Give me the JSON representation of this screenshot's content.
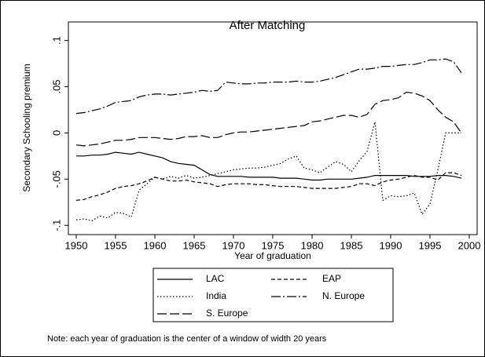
{
  "chart_data": {
    "type": "line",
    "title": "After Matching",
    "x_label": "Year of graduation",
    "y_label": "Secondary Schooling premium",
    "note": "Note: each year of graduation is the center of a window of width 20 years",
    "x": [
      1950,
      1951,
      1952,
      1953,
      1954,
      1955,
      1956,
      1957,
      1958,
      1959,
      1960,
      1961,
      1962,
      1963,
      1964,
      1965,
      1966,
      1967,
      1968,
      1969,
      1970,
      1971,
      1972,
      1973,
      1974,
      1975,
      1976,
      1977,
      1978,
      1979,
      1980,
      1981,
      1982,
      1983,
      1984,
      1985,
      1986,
      1987,
      1988,
      1989,
      1990,
      1991,
      1992,
      1993,
      1994,
      1995,
      1996,
      1997,
      1998,
      1999
    ],
    "series": [
      {
        "name": "LAC",
        "color": "#000000",
        "style": "solid",
        "values": [
          -0.025,
          -0.025,
          -0.024,
          -0.024,
          -0.023,
          -0.021,
          -0.022,
          -0.023,
          -0.021,
          -0.023,
          -0.025,
          -0.027,
          -0.031,
          -0.033,
          -0.034,
          -0.035,
          -0.04,
          -0.045,
          -0.047,
          -0.047,
          -0.047,
          -0.047,
          -0.048,
          -0.048,
          -0.048,
          -0.048,
          -0.049,
          -0.049,
          -0.049,
          -0.05,
          -0.051,
          -0.051,
          -0.05,
          -0.05,
          -0.05,
          -0.05,
          -0.049,
          -0.048,
          -0.046,
          -0.046,
          -0.046,
          -0.046,
          -0.046,
          -0.047,
          -0.047,
          -0.047,
          -0.046,
          -0.046,
          -0.047,
          -0.049
        ]
      },
      {
        "name": "EAP",
        "color": "#000000",
        "style": "dash",
        "values": [
          -0.073,
          -0.072,
          -0.069,
          -0.067,
          -0.064,
          -0.06,
          -0.058,
          -0.057,
          -0.055,
          -0.052,
          -0.048,
          -0.05,
          -0.052,
          -0.052,
          -0.051,
          -0.053,
          -0.054,
          -0.055,
          -0.058,
          -0.056,
          -0.055,
          -0.055,
          -0.055,
          -0.056,
          -0.056,
          -0.057,
          -0.058,
          -0.058,
          -0.058,
          -0.059,
          -0.06,
          -0.06,
          -0.06,
          -0.06,
          -0.059,
          -0.058,
          -0.055,
          -0.055,
          -0.057,
          -0.053,
          -0.051,
          -0.05,
          -0.048,
          -0.046,
          -0.048,
          -0.048,
          -0.051,
          -0.043,
          -0.043,
          -0.046
        ]
      },
      {
        "name": "India",
        "color": "#000000",
        "style": "dot",
        "values": [
          -0.094,
          -0.093,
          -0.095,
          -0.09,
          -0.092,
          -0.086,
          -0.087,
          -0.091,
          -0.062,
          -0.055,
          -0.048,
          -0.05,
          -0.047,
          -0.049,
          -0.046,
          -0.049,
          -0.048,
          -0.046,
          -0.044,
          -0.042,
          -0.04,
          -0.039,
          -0.038,
          -0.038,
          -0.037,
          -0.035,
          -0.033,
          -0.028,
          -0.025,
          -0.038,
          -0.04,
          -0.043,
          -0.037,
          -0.031,
          -0.034,
          -0.042,
          -0.03,
          -0.02,
          0.012,
          -0.073,
          -0.068,
          -0.069,
          -0.068,
          -0.065,
          -0.088,
          -0.077,
          -0.04,
          0.0,
          0.0,
          0.0
        ]
      },
      {
        "name": "N. Europe",
        "color": "#000000",
        "style": "dashdot",
        "values": [
          0.021,
          0.022,
          0.024,
          0.026,
          0.029,
          0.033,
          0.034,
          0.035,
          0.039,
          0.041,
          0.042,
          0.042,
          0.041,
          0.042,
          0.043,
          0.044,
          0.046,
          0.045,
          0.046,
          0.055,
          0.054,
          0.053,
          0.053,
          0.054,
          0.054,
          0.055,
          0.055,
          0.055,
          0.056,
          0.055,
          0.055,
          0.056,
          0.058,
          0.06,
          0.063,
          0.066,
          0.069,
          0.069,
          0.07,
          0.072,
          0.072,
          0.073,
          0.074,
          0.074,
          0.076,
          0.079,
          0.079,
          0.08,
          0.077,
          0.065
        ]
      },
      {
        "name": "S. Europe",
        "color": "#000000",
        "style": "longdash",
        "values": [
          -0.013,
          -0.014,
          -0.013,
          -0.012,
          -0.01,
          -0.008,
          -0.008,
          -0.007,
          -0.005,
          -0.005,
          -0.005,
          -0.006,
          -0.007,
          -0.006,
          -0.004,
          -0.004,
          -0.003,
          -0.005,
          -0.005,
          -0.002,
          0.0,
          0.001,
          0.001,
          0.002,
          0.003,
          0.004,
          0.005,
          0.006,
          0.007,
          0.008,
          0.012,
          0.013,
          0.015,
          0.017,
          0.019,
          0.019,
          0.017,
          0.02,
          0.031,
          0.035,
          0.036,
          0.038,
          0.044,
          0.043,
          0.04,
          0.035,
          0.025,
          0.017,
          0.012,
          0.0
        ]
      }
    ],
    "xlim": [
      1949,
      2001
    ],
    "xticks": [
      1950,
      1955,
      1960,
      1965,
      1970,
      1975,
      1980,
      1985,
      1990,
      1995,
      2000
    ],
    "ylim": [
      -0.11,
      0.12
    ],
    "yticks": [
      {
        "value": -0.1,
        "label": "-.1"
      },
      {
        "value": -0.05,
        "label": "-.05"
      },
      0,
      {
        "value": 0.05,
        "label": ".05"
      },
      {
        "value": 0.1,
        "label": ".1"
      }
    ],
    "grid": false,
    "legend": "bottom"
  }
}
